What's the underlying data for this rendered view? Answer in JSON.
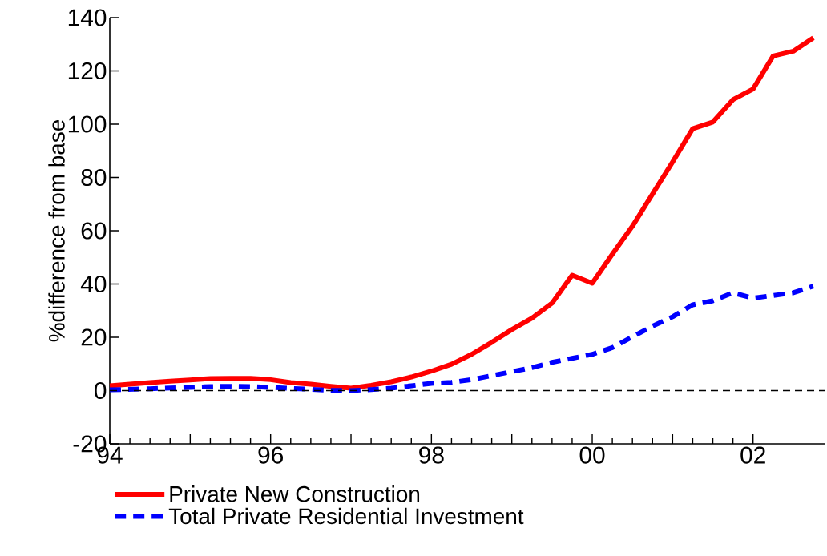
{
  "chart_data": {
    "type": "line",
    "ylabel": "%difference from base",
    "x": [
      1994.0,
      1994.25,
      1994.5,
      1994.75,
      1995.0,
      1995.25,
      1995.5,
      1995.75,
      1996.0,
      1996.25,
      1996.5,
      1996.75,
      1997.0,
      1997.25,
      1997.5,
      1997.75,
      1998.0,
      1998.25,
      1998.5,
      1998.75,
      1999.0,
      1999.25,
      1999.5,
      1999.75,
      2000.0,
      2000.25,
      2000.5,
      2000.75,
      2001.0,
      2001.25,
      2001.5,
      2001.75,
      2002.0,
      2002.25,
      2002.5,
      2002.75
    ],
    "series": [
      {
        "name": "Private New Construction",
        "color": "#ff0000",
        "line_style": "solid",
        "values": [
          1.8,
          2.4,
          3.0,
          3.5,
          4.0,
          4.5,
          4.6,
          4.6,
          4.1,
          3.0,
          2.4,
          1.6,
          0.9,
          2.0,
          3.3,
          5.1,
          7.3,
          9.9,
          13.6,
          18.1,
          22.9,
          27.2,
          32.8,
          43.3,
          40.3,
          51.2,
          61.7,
          73.8,
          85.8,
          98.3,
          100.8,
          109.2,
          113.2,
          125.6,
          127.4,
          132.4
        ]
      },
      {
        "name": "Total Private Residential Investment",
        "color": "#0000ff",
        "line_style": "dashed",
        "values": [
          0.3,
          0.5,
          0.7,
          1.0,
          1.2,
          1.5,
          1.6,
          1.5,
          1.2,
          0.8,
          0.5,
          0.1,
          0.0,
          0.4,
          0.9,
          1.8,
          2.7,
          3.1,
          4.1,
          5.6,
          7.1,
          8.6,
          10.6,
          12.1,
          13.6,
          16.1,
          20.2,
          24.2,
          27.7,
          32.2,
          33.7,
          36.7,
          34.7,
          35.7,
          36.7,
          39.2
        ]
      }
    ],
    "xlim": [
      1994,
      2002.9
    ],
    "xticks": [
      {
        "value": 1994,
        "label": "94"
      },
      {
        "value": 1995,
        "label": null
      },
      {
        "value": 1996,
        "label": "96"
      },
      {
        "value": 1997,
        "label": null
      },
      {
        "value": 1998,
        "label": "98"
      },
      {
        "value": 1999,
        "label": null
      },
      {
        "value": 2000,
        "label": "00"
      },
      {
        "value": 2001,
        "label": null
      },
      {
        "value": 2002,
        "label": "02"
      }
    ],
    "ylim": [
      -20,
      140
    ],
    "yticks": [
      -20,
      0,
      20,
      40,
      60,
      80,
      100,
      120,
      140
    ],
    "ref_lines": [
      {
        "axis": "y",
        "value": 0,
        "color": "#000000",
        "line_style": "dashed"
      }
    ],
    "grid": false,
    "legend": "bottom",
    "marker": "none"
  }
}
